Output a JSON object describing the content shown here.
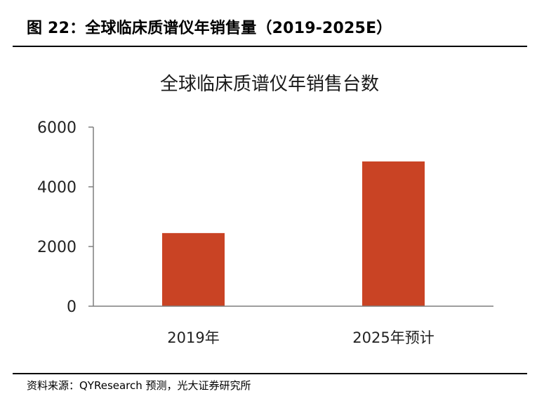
{
  "figure": {
    "title": "图 22：全球临床质谱仪年销售量（2019-2025E）",
    "source": "资料来源：QYResearch 预测，光大证券研究所"
  },
  "chart_data": {
    "type": "bar",
    "title": "全球临床质谱仪年销售台数",
    "categories": [
      "2019年",
      "2025年预计"
    ],
    "values": [
      2450,
      4850
    ],
    "xlabel": "",
    "ylabel": "",
    "ylim": [
      0,
      6000
    ],
    "yticks": [
      0,
      2000,
      4000,
      6000
    ],
    "grid": false,
    "legend": "none",
    "bar_color": "#c94324",
    "axis_color": "#7f7f7f"
  }
}
